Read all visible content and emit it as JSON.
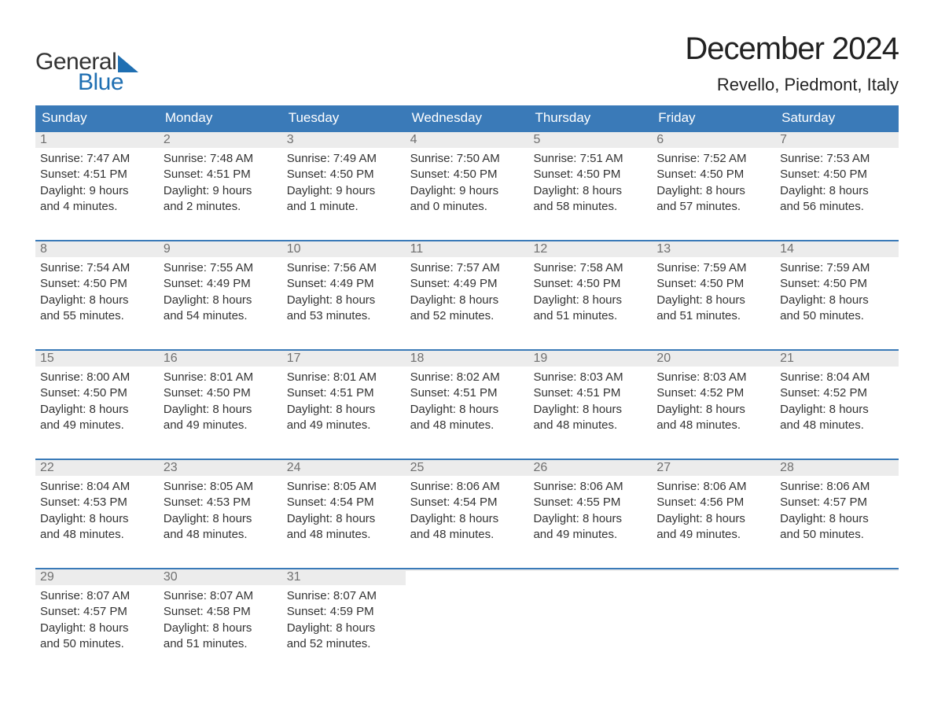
{
  "brand": {
    "word1": "General",
    "word2": "Blue"
  },
  "header": {
    "title": "December 2024",
    "subtitle": "Revello, Piedmont, Italy"
  },
  "colors": {
    "header_bg": "#3a7ab8",
    "header_text": "#ffffff",
    "week_border": "#3a7ab8",
    "daynum_bg": "#ececec",
    "daynum_text": "#707070",
    "body_text": "#333333",
    "brand_blue": "#1f6fb2",
    "background": "#ffffff"
  },
  "typography": {
    "title_fontsize": 40,
    "subtitle_fontsize": 22,
    "dayheader_fontsize": 17,
    "daynum_fontsize": 16,
    "dayinfo_fontsize": 15,
    "logo_fontsize": 30
  },
  "day_labels": [
    "Sunday",
    "Monday",
    "Tuesday",
    "Wednesday",
    "Thursday",
    "Friday",
    "Saturday"
  ],
  "weeks": [
    [
      {
        "n": "1",
        "sr": "Sunrise: 7:47 AM",
        "ss": "Sunset: 4:51 PM",
        "d1": "Daylight: 9 hours",
        "d2": "and 4 minutes."
      },
      {
        "n": "2",
        "sr": "Sunrise: 7:48 AM",
        "ss": "Sunset: 4:51 PM",
        "d1": "Daylight: 9 hours",
        "d2": "and 2 minutes."
      },
      {
        "n": "3",
        "sr": "Sunrise: 7:49 AM",
        "ss": "Sunset: 4:50 PM",
        "d1": "Daylight: 9 hours",
        "d2": "and 1 minute."
      },
      {
        "n": "4",
        "sr": "Sunrise: 7:50 AM",
        "ss": "Sunset: 4:50 PM",
        "d1": "Daylight: 9 hours",
        "d2": "and 0 minutes."
      },
      {
        "n": "5",
        "sr": "Sunrise: 7:51 AM",
        "ss": "Sunset: 4:50 PM",
        "d1": "Daylight: 8 hours",
        "d2": "and 58 minutes."
      },
      {
        "n": "6",
        "sr": "Sunrise: 7:52 AM",
        "ss": "Sunset: 4:50 PM",
        "d1": "Daylight: 8 hours",
        "d2": "and 57 minutes."
      },
      {
        "n": "7",
        "sr": "Sunrise: 7:53 AM",
        "ss": "Sunset: 4:50 PM",
        "d1": "Daylight: 8 hours",
        "d2": "and 56 minutes."
      }
    ],
    [
      {
        "n": "8",
        "sr": "Sunrise: 7:54 AM",
        "ss": "Sunset: 4:50 PM",
        "d1": "Daylight: 8 hours",
        "d2": "and 55 minutes."
      },
      {
        "n": "9",
        "sr": "Sunrise: 7:55 AM",
        "ss": "Sunset: 4:49 PM",
        "d1": "Daylight: 8 hours",
        "d2": "and 54 minutes."
      },
      {
        "n": "10",
        "sr": "Sunrise: 7:56 AM",
        "ss": "Sunset: 4:49 PM",
        "d1": "Daylight: 8 hours",
        "d2": "and 53 minutes."
      },
      {
        "n": "11",
        "sr": "Sunrise: 7:57 AM",
        "ss": "Sunset: 4:49 PM",
        "d1": "Daylight: 8 hours",
        "d2": "and 52 minutes."
      },
      {
        "n": "12",
        "sr": "Sunrise: 7:58 AM",
        "ss": "Sunset: 4:50 PM",
        "d1": "Daylight: 8 hours",
        "d2": "and 51 minutes."
      },
      {
        "n": "13",
        "sr": "Sunrise: 7:59 AM",
        "ss": "Sunset: 4:50 PM",
        "d1": "Daylight: 8 hours",
        "d2": "and 51 minutes."
      },
      {
        "n": "14",
        "sr": "Sunrise: 7:59 AM",
        "ss": "Sunset: 4:50 PM",
        "d1": "Daylight: 8 hours",
        "d2": "and 50 minutes."
      }
    ],
    [
      {
        "n": "15",
        "sr": "Sunrise: 8:00 AM",
        "ss": "Sunset: 4:50 PM",
        "d1": "Daylight: 8 hours",
        "d2": "and 49 minutes."
      },
      {
        "n": "16",
        "sr": "Sunrise: 8:01 AM",
        "ss": "Sunset: 4:50 PM",
        "d1": "Daylight: 8 hours",
        "d2": "and 49 minutes."
      },
      {
        "n": "17",
        "sr": "Sunrise: 8:01 AM",
        "ss": "Sunset: 4:51 PM",
        "d1": "Daylight: 8 hours",
        "d2": "and 49 minutes."
      },
      {
        "n": "18",
        "sr": "Sunrise: 8:02 AM",
        "ss": "Sunset: 4:51 PM",
        "d1": "Daylight: 8 hours",
        "d2": "and 48 minutes."
      },
      {
        "n": "19",
        "sr": "Sunrise: 8:03 AM",
        "ss": "Sunset: 4:51 PM",
        "d1": "Daylight: 8 hours",
        "d2": "and 48 minutes."
      },
      {
        "n": "20",
        "sr": "Sunrise: 8:03 AM",
        "ss": "Sunset: 4:52 PM",
        "d1": "Daylight: 8 hours",
        "d2": "and 48 minutes."
      },
      {
        "n": "21",
        "sr": "Sunrise: 8:04 AM",
        "ss": "Sunset: 4:52 PM",
        "d1": "Daylight: 8 hours",
        "d2": "and 48 minutes."
      }
    ],
    [
      {
        "n": "22",
        "sr": "Sunrise: 8:04 AM",
        "ss": "Sunset: 4:53 PM",
        "d1": "Daylight: 8 hours",
        "d2": "and 48 minutes."
      },
      {
        "n": "23",
        "sr": "Sunrise: 8:05 AM",
        "ss": "Sunset: 4:53 PM",
        "d1": "Daylight: 8 hours",
        "d2": "and 48 minutes."
      },
      {
        "n": "24",
        "sr": "Sunrise: 8:05 AM",
        "ss": "Sunset: 4:54 PM",
        "d1": "Daylight: 8 hours",
        "d2": "and 48 minutes."
      },
      {
        "n": "25",
        "sr": "Sunrise: 8:06 AM",
        "ss": "Sunset: 4:54 PM",
        "d1": "Daylight: 8 hours",
        "d2": "and 48 minutes."
      },
      {
        "n": "26",
        "sr": "Sunrise: 8:06 AM",
        "ss": "Sunset: 4:55 PM",
        "d1": "Daylight: 8 hours",
        "d2": "and 49 minutes."
      },
      {
        "n": "27",
        "sr": "Sunrise: 8:06 AM",
        "ss": "Sunset: 4:56 PM",
        "d1": "Daylight: 8 hours",
        "d2": "and 49 minutes."
      },
      {
        "n": "28",
        "sr": "Sunrise: 8:06 AM",
        "ss": "Sunset: 4:57 PM",
        "d1": "Daylight: 8 hours",
        "d2": "and 50 minutes."
      }
    ],
    [
      {
        "n": "29",
        "sr": "Sunrise: 8:07 AM",
        "ss": "Sunset: 4:57 PM",
        "d1": "Daylight: 8 hours",
        "d2": "and 50 minutes."
      },
      {
        "n": "30",
        "sr": "Sunrise: 8:07 AM",
        "ss": "Sunset: 4:58 PM",
        "d1": "Daylight: 8 hours",
        "d2": "and 51 minutes."
      },
      {
        "n": "31",
        "sr": "Sunrise: 8:07 AM",
        "ss": "Sunset: 4:59 PM",
        "d1": "Daylight: 8 hours",
        "d2": "and 52 minutes."
      },
      {
        "empty": true
      },
      {
        "empty": true
      },
      {
        "empty": true
      },
      {
        "empty": true
      }
    ]
  ]
}
